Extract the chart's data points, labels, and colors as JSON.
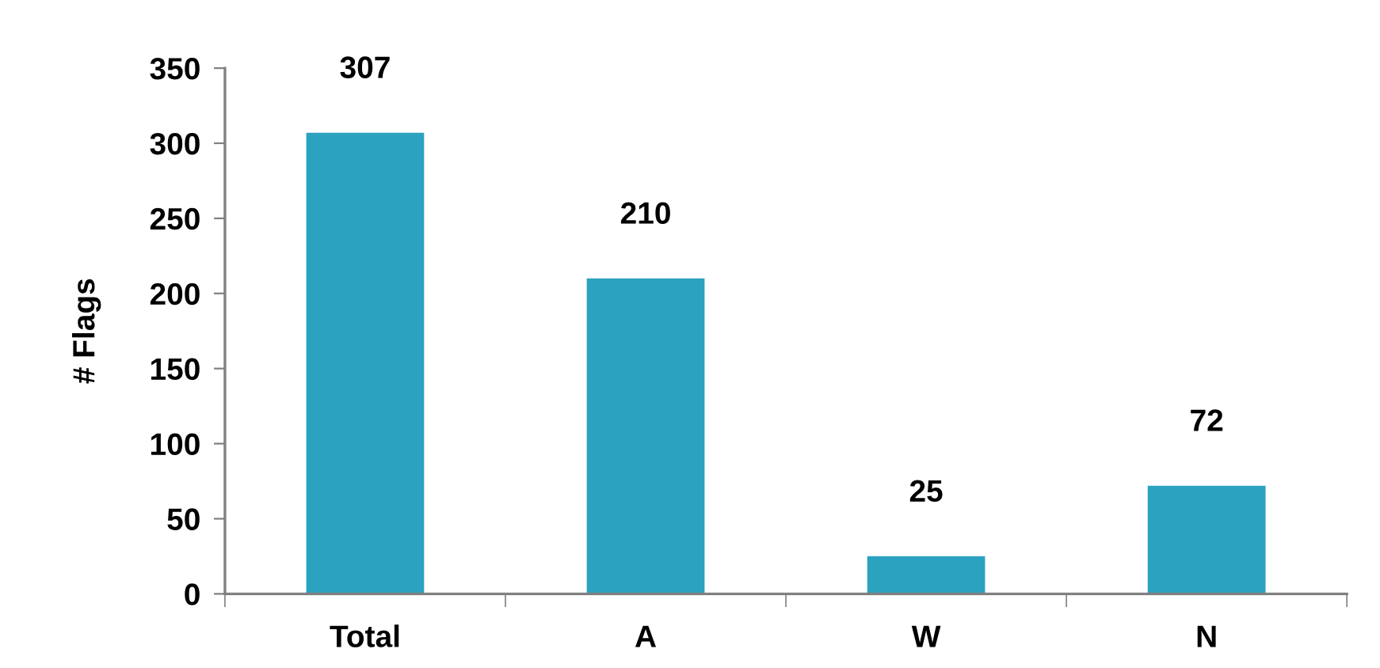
{
  "chart_data": {
    "type": "bar",
    "ylabel": "# Flags",
    "categories": [
      "Total",
      "A",
      "W",
      "N"
    ],
    "values": [
      307,
      210,
      25,
      72
    ],
    "color": "#2ba2c0",
    "ylim": [
      0,
      350
    ],
    "yticks": [
      0,
      50,
      100,
      150,
      200,
      250,
      300,
      350
    ],
    "data_labels": true
  }
}
